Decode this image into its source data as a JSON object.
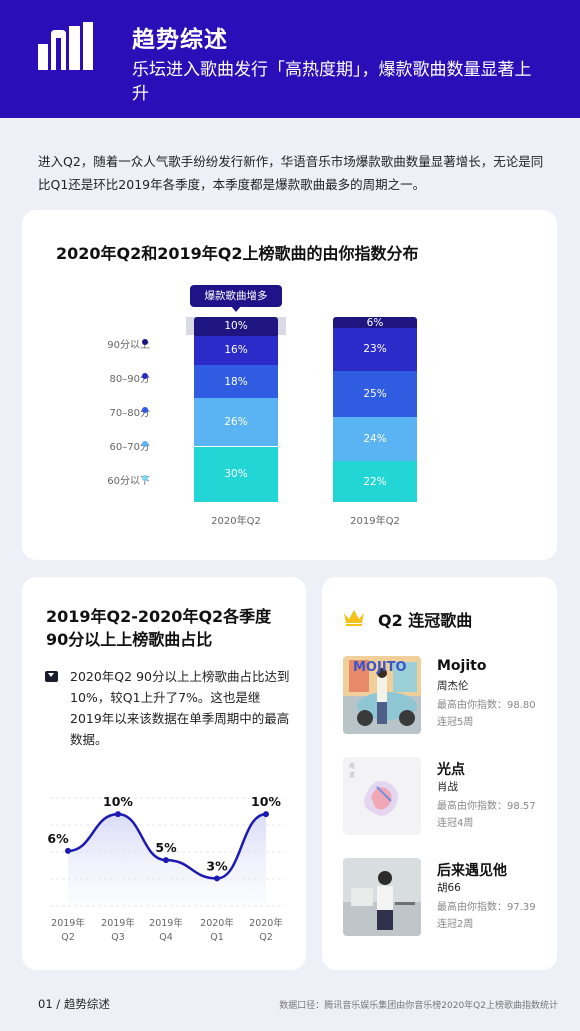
{
  "header": {
    "title": "趋势综述",
    "subtitle": "乐坛进入歌曲发行「高热度期」，爆款歌曲数量显著上升"
  },
  "intro": "进入Q2，随着一众人气歌手纷纷发行新作，华语音乐市场爆款歌曲数量显著增长，无论是同比Q1还是环比2019年各季度，本季度都是爆款歌曲最多的周期之一。",
  "colors": {
    "header_bg": "#2a0fb8",
    "seg_90plus": "#1e1580",
    "seg_80_90": "#2b2bc9",
    "seg_70_80": "#2f5ce0",
    "seg_60_70": "#5ab4f4",
    "seg_below60": "#23d6d6",
    "line": "#1c1ab0"
  },
  "stacked_chart": {
    "title": "2020年Q2和2019年Q2上榜歌曲的由你指数分布",
    "callout": "爆款歌曲增多",
    "legend": [
      "90分以上",
      "80–90分",
      "70–80分",
      "60–70分",
      "60分以下"
    ]
  },
  "line_chart": {
    "title": "2019年Q2-2020年Q2各季度90分以上上榜歌曲占比",
    "description": "2020年Q2 90分以上上榜歌曲占比达到10%，较Q1上升了7%。这也是继2019年以来该数据在单季周期中的最高数据。"
  },
  "chart_data": [
    {
      "type": "bar",
      "stacked": true,
      "title": "2020年Q2和2019年Q2上榜歌曲的由你指数分布",
      "categories": [
        "2020年Q2",
        "2019年Q2"
      ],
      "series": [
        {
          "name": "90分以上",
          "values": [
            10,
            6
          ]
        },
        {
          "name": "80–90分",
          "values": [
            16,
            23
          ]
        },
        {
          "name": "70–80分",
          "values": [
            18,
            25
          ]
        },
        {
          "name": "60–70分",
          "values": [
            26,
            24
          ]
        },
        {
          "name": "60分以下",
          "values": [
            30,
            22
          ]
        }
      ],
      "data_labels": [
        [
          "10%",
          "16%",
          "18%",
          "26%",
          "30%"
        ],
        [
          "6%",
          "23%",
          "25%",
          "24%",
          "22%"
        ]
      ],
      "ylim": [
        0,
        100
      ]
    },
    {
      "type": "line",
      "title": "2019年Q2-2020年Q2各季度90分以上上榜歌曲占比",
      "categories": [
        "2019年 Q2",
        "2019年 Q3",
        "2019年 Q4",
        "2020年 Q1",
        "2020年 Q2"
      ],
      "values": [
        6,
        10,
        5,
        3,
        10
      ],
      "data_labels": [
        "6%",
        "10%",
        "5%",
        "3%",
        "10%"
      ],
      "ylim": [
        0,
        12
      ]
    }
  ],
  "top_songs": {
    "title": "Q2 连冠歌曲",
    "songs": [
      {
        "name": "Mojito",
        "artist": "周杰伦",
        "index": "最高由你指数：98.80",
        "weeks": "连冠5周",
        "cover_text": "MOJITO"
      },
      {
        "name": "光点",
        "artist": "肖战",
        "index": "最高由你指数：98.57",
        "weeks": "连冠4周",
        "cover_text": "光 点"
      },
      {
        "name": "后来遇见他",
        "artist": "胡66",
        "index": "最高由你指数：97.39",
        "weeks": "连冠2周",
        "cover_text": ""
      }
    ]
  },
  "footer": {
    "page": "01 / 趋势综述",
    "source": "数据口径：腾讯音乐娱乐集团由你音乐榜2020年Q2上榜歌曲指数统计"
  }
}
